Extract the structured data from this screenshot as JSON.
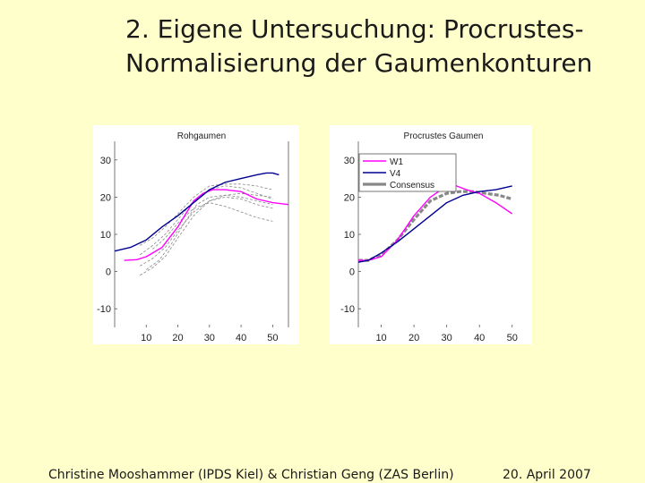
{
  "slide": {
    "title_line1": "2. Eigene Untersuchung: Procrustes-",
    "title_line2": "Normalisierung der Gaumenkonturen",
    "footer_author": "Christine Mooshammer (IPDS Kiel) & Christian Geng (ZAS Berlin)",
    "footer_date": "20. April 2007"
  },
  "chart_data": [
    {
      "type": "line",
      "title": "Rohgaumen",
      "xlabel": "",
      "ylabel": "",
      "xlim": [
        0,
        55
      ],
      "ylim": [
        -15,
        35
      ],
      "xticks": [
        10,
        20,
        30,
        40,
        50
      ],
      "yticks": [
        30,
        20,
        10,
        0,
        -10
      ],
      "grid": false,
      "legend": null,
      "series": [
        {
          "color": "#ff00ff",
          "x": [
            3,
            7,
            10,
            15,
            20,
            25,
            28,
            31,
            35,
            40,
            45,
            50,
            55
          ],
          "y": [
            3,
            3.2,
            4,
            6.5,
            12,
            19,
            21,
            22,
            22,
            21.5,
            19.5,
            18.5,
            18
          ]
        },
        {
          "color": "#000090",
          "x": [
            0,
            5,
            10,
            15,
            20,
            25,
            30,
            35,
            40,
            45,
            48,
            50,
            52
          ],
          "y": [
            5.5,
            6.5,
            8.5,
            12,
            15,
            18.5,
            22,
            24,
            25,
            26,
            26.5,
            26.5,
            26
          ]
        },
        {
          "color": "#888888",
          "x": [
            8,
            12,
            16,
            20,
            25,
            30,
            35,
            40,
            45,
            50
          ],
          "y": [
            -1,
            1,
            4,
            9,
            15,
            19,
            20,
            19.5,
            18,
            17
          ]
        },
        {
          "color": "#888888",
          "x": [
            8,
            12,
            16,
            20,
            25,
            30,
            35,
            40,
            45,
            50
          ],
          "y": [
            4.5,
            7,
            10,
            14,
            19,
            22,
            23,
            22.5,
            21,
            19.5
          ]
        },
        {
          "color": "#888888",
          "x": [
            8,
            12,
            16,
            20,
            25,
            30,
            35,
            40,
            45,
            50
          ],
          "y": [
            1.5,
            3.5,
            6.5,
            11,
            16,
            19,
            20.5,
            21,
            20.5,
            20
          ]
        },
        {
          "color": "#888888",
          "x": [
            8,
            12,
            16,
            20,
            25,
            30,
            35,
            40,
            45,
            50
          ],
          "y": [
            7,
            9,
            12,
            15.5,
            20,
            23,
            23.5,
            23.5,
            23,
            22
          ]
        },
        {
          "color": "#888888",
          "x": [
            10,
            14,
            18,
            22,
            26,
            30,
            35,
            40,
            45,
            50
          ],
          "y": [
            0.5,
            3,
            7.5,
            13,
            18,
            20,
            20.5,
            20,
            19,
            18
          ]
        },
        {
          "color": "#888888",
          "x": [
            12,
            16,
            20,
            25,
            30,
            35,
            40,
            45,
            50
          ],
          "y": [
            6,
            9,
            13,
            17,
            18.5,
            17.5,
            16,
            14.5,
            13.5
          ]
        }
      ]
    },
    {
      "type": "line",
      "title": "Procrustes Gaumen",
      "xlabel": "",
      "ylabel": "",
      "xlim": [
        3,
        55
      ],
      "ylim": [
        -15,
        35
      ],
      "xticks": [
        10,
        20,
        30,
        40,
        50
      ],
      "yticks": [
        30,
        20,
        10,
        0,
        -10
      ],
      "grid": false,
      "legend": "top-left",
      "series": [
        {
          "name": "Consensus",
          "color": "#888888",
          "x": [
            3,
            6,
            10,
            15,
            20,
            25,
            30,
            34,
            38,
            42,
            46,
            50
          ],
          "y": [
            3,
            3,
            4.5,
            8.5,
            14,
            19,
            21,
            21.5,
            21.5,
            21,
            20.5,
            19.5
          ]
        },
        {
          "name": "W1",
          "color": "#ff00ff",
          "x": [
            3,
            6,
            10,
            15,
            20,
            25,
            30,
            33,
            36,
            40,
            45,
            50
          ],
          "y": [
            3,
            3,
            4,
            8.5,
            15,
            20,
            23,
            23,
            22,
            21,
            18.5,
            15.5
          ]
        },
        {
          "name": "V4",
          "color": "#000090",
          "x": [
            3,
            6,
            10,
            15,
            20,
            25,
            30,
            35,
            40,
            45,
            50
          ],
          "y": [
            2.5,
            3,
            5,
            8,
            11.5,
            15,
            18.5,
            20.5,
            21.5,
            22,
            23
          ]
        }
      ]
    }
  ]
}
